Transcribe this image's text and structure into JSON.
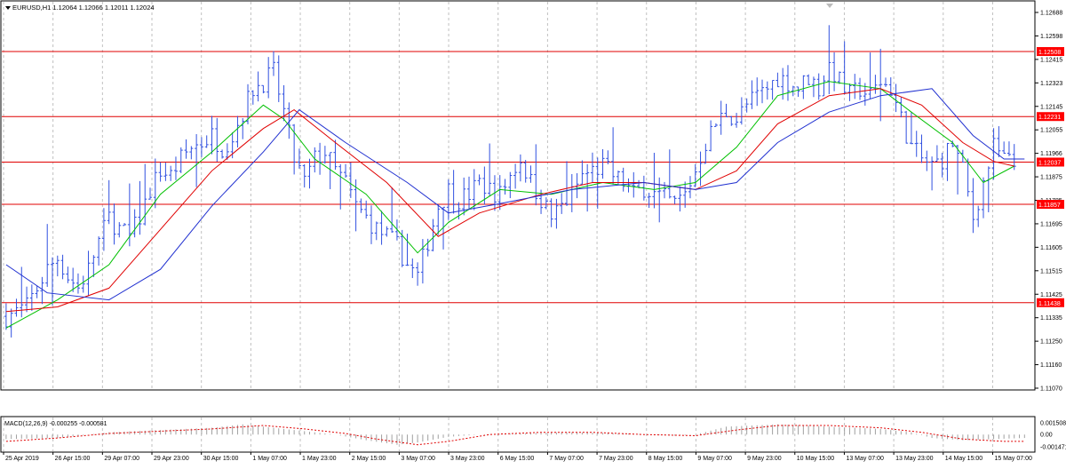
{
  "window": {
    "symbol_label": "EURUSD,H1  1.12064 1.12066 1.12011 1.12024",
    "marker_icon": "triangle-down-icon"
  },
  "colors": {
    "background": "#ffffff",
    "frame": "#000000",
    "grid": "#c0c0c0",
    "candles": "#3050e0",
    "ma_fast": "#00c000",
    "ma_mid": "#e00000",
    "ma_slow": "#2030d0",
    "level": "#e00000",
    "level_label_bg": "#ff0000",
    "level_label_text": "#ffffff",
    "macd_hist": "#a0a0a0",
    "macd_signal": "#e00000"
  },
  "chart_data": [
    {
      "type": "candlestick",
      "title": "EURUSD,H1  1.12064 1.12066 1.12011 1.12024",
      "grid": true,
      "ylim": [
        1.1107,
        1.1272
      ],
      "y_ticks": [
        "1.12688",
        "1.12598",
        "1.12415",
        "1.12323",
        "1.12145",
        "1.12055",
        "1.11966",
        "1.11875",
        "1.11785",
        "1.11695",
        "1.11605",
        "1.11515",
        "1.11425",
        "1.11335",
        "1.11250",
        "1.11160",
        "1.11070"
      ],
      "x_ticks": [
        "25 Apr 2019",
        "26 Apr 15:00",
        "29 Apr 07:00",
        "29 Apr 23:00",
        "30 Apr 15:00",
        "1 May 07:00",
        "1 May 23:00",
        "2 May 15:00",
        "3 May 07:00",
        "3 May 23:00",
        "6 May 15:00",
        "7 May 07:00",
        "7 May 23:00",
        "8 May 15:00",
        "9 May 07:00",
        "9 May 23:00",
        "10 May 15:00",
        "13 May 07:00",
        "13 May 23:00",
        "14 May 15:00",
        "15 May 07:00"
      ],
      "levels": [
        {
          "value": 1.12508,
          "label": "1.12508"
        },
        {
          "value": 1.12231,
          "label": "1.12231"
        },
        {
          "value": 1.12037,
          "label": "1.12037"
        },
        {
          "value": 1.11857,
          "label": "1.11857"
        },
        {
          "value": 1.11438,
          "label": "1.11438"
        }
      ],
      "price_path": [
        [
          0,
          1.1138
        ],
        [
          2,
          1.114
        ],
        [
          4,
          1.1142
        ],
        [
          6,
          1.115
        ],
        [
          8,
          1.1158
        ],
        [
          10,
          1.1163
        ],
        [
          12,
          1.1155
        ],
        [
          14,
          1.115
        ],
        [
          16,
          1.1158
        ],
        [
          18,
          1.117
        ],
        [
          20,
          1.118
        ],
        [
          22,
          1.1175
        ],
        [
          24,
          1.1172
        ],
        [
          26,
          1.118
        ],
        [
          28,
          1.1192
        ],
        [
          30,
          1.12
        ],
        [
          32,
          1.1198
        ],
        [
          34,
          1.1205
        ],
        [
          36,
          1.121
        ],
        [
          38,
          1.1212
        ],
        [
          40,
          1.1215
        ],
        [
          42,
          1.121
        ],
        [
          44,
          1.1215
        ],
        [
          46,
          1.1225
        ],
        [
          48,
          1.1235
        ],
        [
          50,
          1.1238
        ],
        [
          52,
          1.1242
        ],
        [
          54,
          1.1225
        ],
        [
          56,
          1.1205
        ],
        [
          58,
          1.1195
        ],
        [
          60,
          1.1205
        ],
        [
          62,
          1.1208
        ],
        [
          64,
          1.12
        ],
        [
          66,
          1.1195
        ],
        [
          68,
          1.1185
        ],
        [
          70,
          1.118
        ],
        [
          72,
          1.1175
        ],
        [
          74,
          1.1172
        ],
        [
          76,
          1.1168
        ],
        [
          78,
          1.116
        ],
        [
          80,
          1.1155
        ],
        [
          82,
          1.117
        ],
        [
          84,
          1.1185
        ],
        [
          86,
          1.1192
        ],
        [
          88,
          1.1188
        ],
        [
          90,
          1.119
        ],
        [
          92,
          1.1195
        ],
        [
          94,
          1.1192
        ],
        [
          96,
          1.119
        ],
        [
          98,
          1.1198
        ],
        [
          100,
          1.1205
        ],
        [
          102,
          1.1195
        ],
        [
          104,
          1.1188
        ],
        [
          106,
          1.118
        ],
        [
          108,
          1.1185
        ],
        [
          110,
          1.119
        ],
        [
          112,
          1.1198
        ],
        [
          114,
          1.12
        ],
        [
          116,
          1.1202
        ],
        [
          118,
          1.1198
        ],
        [
          120,
          1.1195
        ],
        [
          122,
          1.119
        ],
        [
          124,
          1.1193
        ],
        [
          126,
          1.119
        ],
        [
          128,
          1.1188
        ],
        [
          130,
          1.1186
        ],
        [
          132,
          1.119
        ],
        [
          134,
          1.12
        ],
        [
          136,
          1.1212
        ],
        [
          138,
          1.122
        ],
        [
          140,
          1.1225
        ],
        [
          142,
          1.1222
        ],
        [
          144,
          1.1228
        ],
        [
          146,
          1.1232
        ],
        [
          148,
          1.1235
        ],
        [
          150,
          1.124
        ],
        [
          152,
          1.1238
        ],
        [
          154,
          1.1235
        ],
        [
          156,
          1.124
        ],
        [
          158,
          1.1235
        ],
        [
          160,
          1.1245
        ],
        [
          162,
          1.1238
        ],
        [
          164,
          1.1232
        ],
        [
          166,
          1.1235
        ],
        [
          168,
          1.1232
        ],
        [
          170,
          1.1238
        ],
        [
          172,
          1.1235
        ],
        [
          174,
          1.1222
        ],
        [
          176,
          1.121
        ],
        [
          178,
          1.1205
        ],
        [
          180,
          1.1202
        ],
        [
          182,
          1.1205
        ],
        [
          184,
          1.1212
        ],
        [
          186,
          1.12
        ],
        [
          188,
          1.118
        ],
        [
          190,
          1.1195
        ],
        [
          192,
          1.121
        ],
        [
          194,
          1.1205
        ],
        [
          196,
          1.12024
        ]
      ],
      "series": [
        {
          "values": [
            [
              0,
              1.1133
            ],
            [
              10,
              1.1145
            ],
            [
              20,
              1.116
            ],
            [
              30,
              1.119
            ],
            [
              40,
              1.1208
            ],
            [
              50,
              1.1228
            ],
            [
              54,
              1.1222
            ],
            [
              60,
              1.1205
            ],
            [
              70,
              1.119
            ],
            [
              80,
              1.1165
            ],
            [
              86,
              1.1178
            ],
            [
              96,
              1.1192
            ],
            [
              106,
              1.119
            ],
            [
              116,
              1.1195
            ],
            [
              126,
              1.1192
            ],
            [
              134,
              1.1195
            ],
            [
              142,
              1.121
            ],
            [
              150,
              1.1232
            ],
            [
              160,
              1.1238
            ],
            [
              170,
              1.1235
            ],
            [
              176,
              1.1225
            ],
            [
              184,
              1.1212
            ],
            [
              190,
              1.1195
            ],
            [
              196,
              1.1202
            ]
          ]
        },
        {
          "values": [
            [
              0,
              1.114
            ],
            [
              10,
              1.1142
            ],
            [
              20,
              1.115
            ],
            [
              30,
              1.1175
            ],
            [
              40,
              1.12
            ],
            [
              50,
              1.1218
            ],
            [
              56,
              1.1226
            ],
            [
              64,
              1.1212
            ],
            [
              74,
              1.1195
            ],
            [
              84,
              1.1172
            ],
            [
              92,
              1.1182
            ],
            [
              104,
              1.119
            ],
            [
              114,
              1.1195
            ],
            [
              124,
              1.1195
            ],
            [
              134,
              1.1192
            ],
            [
              142,
              1.12
            ],
            [
              150,
              1.122
            ],
            [
              160,
              1.1232
            ],
            [
              170,
              1.1235
            ],
            [
              178,
              1.1228
            ],
            [
              186,
              1.1212
            ],
            [
              192,
              1.1204
            ],
            [
              196,
              1.1202
            ]
          ]
        },
        {
          "values": [
            [
              0,
              1.116
            ],
            [
              8,
              1.1148
            ],
            [
              20,
              1.1145
            ],
            [
              30,
              1.1158
            ],
            [
              40,
              1.1185
            ],
            [
              50,
              1.1208
            ],
            [
              57,
              1.1226
            ],
            [
              66,
              1.1212
            ],
            [
              78,
              1.1195
            ],
            [
              86,
              1.1182
            ],
            [
              96,
              1.1186
            ],
            [
              110,
              1.1192
            ],
            [
              124,
              1.1195
            ],
            [
              134,
              1.1192
            ],
            [
              142,
              1.1195
            ],
            [
              150,
              1.1212
            ],
            [
              160,
              1.1225
            ],
            [
              170,
              1.1232
            ],
            [
              180,
              1.1235
            ],
            [
              188,
              1.1215
            ],
            [
              194,
              1.1205
            ],
            [
              198,
              1.1205
            ]
          ]
        }
      ]
    },
    {
      "type": "bar",
      "title": "MACD(12,26,9) -0.000255 -0.000581",
      "ylim": [
        -0.001471,
        0.001508
      ],
      "y_ticks": [
        "0.001508",
        "0.00",
        "-0.001471"
      ],
      "histogram": [
        [
          0,
          -0.0004
        ],
        [
          10,
          -0.0003
        ],
        [
          16,
          0.0
        ],
        [
          20,
          0.0002
        ],
        [
          30,
          0.0004
        ],
        [
          40,
          0.0006
        ],
        [
          46,
          0.0009
        ],
        [
          52,
          0.0006
        ],
        [
          58,
          0.0003
        ],
        [
          64,
          0.0
        ],
        [
          70,
          -0.0005
        ],
        [
          76,
          -0.0009
        ],
        [
          80,
          -0.0007
        ],
        [
          86,
          -0.0002
        ],
        [
          92,
          0.0
        ],
        [
          100,
          0.0001
        ],
        [
          110,
          0.0002
        ],
        [
          120,
          0.0001
        ],
        [
          130,
          -0.0001
        ],
        [
          134,
          0.0
        ],
        [
          140,
          0.0007
        ],
        [
          150,
          0.0009
        ],
        [
          160,
          0.0007
        ],
        [
          170,
          0.0005
        ],
        [
          176,
          0.0002
        ],
        [
          180,
          -0.0003
        ],
        [
          186,
          -0.0005
        ],
        [
          192,
          -0.0004
        ],
        [
          198,
          -0.0003
        ]
      ],
      "signal": [
        [
          0,
          -0.0006
        ],
        [
          10,
          -0.0003
        ],
        [
          20,
          0.0001
        ],
        [
          30,
          0.0003
        ],
        [
          40,
          0.0005
        ],
        [
          50,
          0.0008
        ],
        [
          58,
          0.0005
        ],
        [
          66,
          0.0001
        ],
        [
          72,
          -0.0004
        ],
        [
          80,
          -0.0009
        ],
        [
          86,
          -0.0006
        ],
        [
          94,
          0.0
        ],
        [
          104,
          0.0002
        ],
        [
          114,
          0.0002
        ],
        [
          124,
          0.0
        ],
        [
          134,
          -0.0001
        ],
        [
          142,
          0.0004
        ],
        [
          150,
          0.0008
        ],
        [
          160,
          0.0008
        ],
        [
          170,
          0.0006
        ],
        [
          178,
          0.0002
        ],
        [
          186,
          -0.0004
        ],
        [
          194,
          -0.0006
        ],
        [
          198,
          -0.0006
        ]
      ]
    }
  ]
}
